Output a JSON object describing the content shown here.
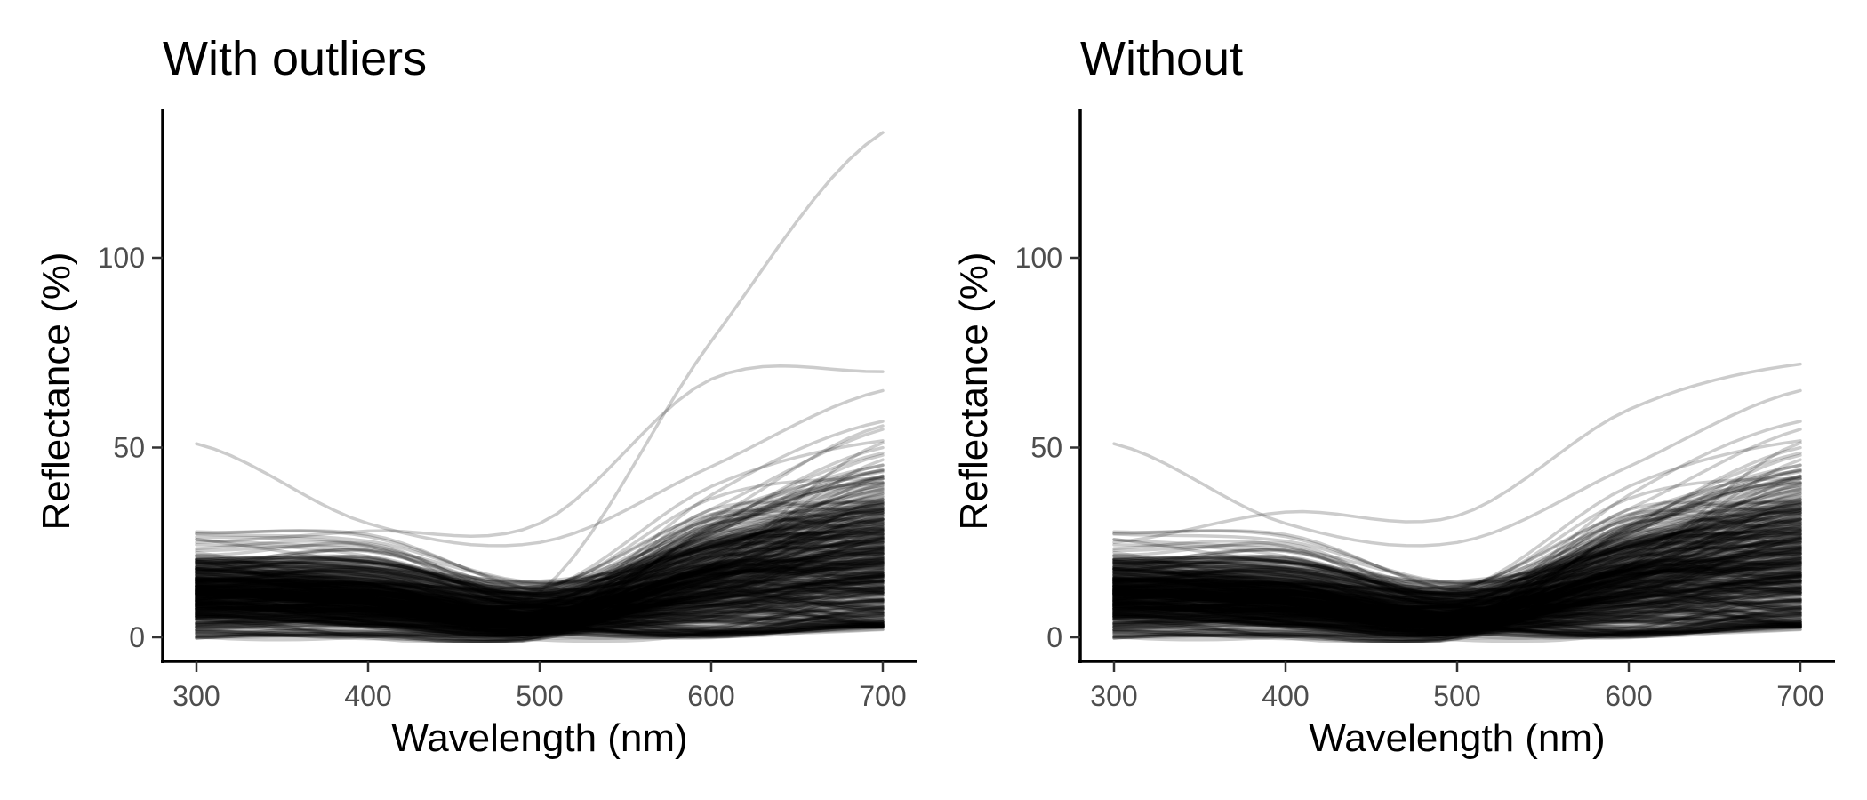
{
  "chart_data": [
    {
      "type": "line",
      "panel": "left",
      "title": "With outliers",
      "xlabel": "Wavelength (nm)",
      "ylabel": "Reflectance (%)",
      "xlim": [
        300,
        700
      ],
      "ylim": [
        0,
        133
      ],
      "xticks": [
        300,
        400,
        500,
        600,
        700
      ],
      "yticks": [
        0,
        50,
        100
      ],
      "grid": false,
      "legend": "none",
      "line_color": "#000000",
      "line_alpha": 0.2,
      "n_spectra": 400,
      "includes_outliers": true,
      "representative_series": [
        {
          "x": [
            300,
            400,
            500,
            600,
            700
          ],
          "y": [
            1,
            1,
            1,
            2,
            3
          ]
        },
        {
          "x": [
            300,
            400,
            500,
            600,
            700
          ],
          "y": [
            10,
            6,
            4,
            25,
            35
          ]
        },
        {
          "x": [
            300,
            400,
            500,
            600,
            700
          ],
          "y": [
            51,
            30,
            25,
            45,
            65
          ]
        },
        {
          "x": [
            300,
            400,
            500,
            600,
            700
          ],
          "y": [
            20,
            10,
            12,
            78,
            133
          ]
        },
        {
          "x": [
            300,
            400,
            500,
            600,
            700
          ],
          "y": [
            25,
            28,
            30,
            68,
            70
          ]
        }
      ]
    },
    {
      "type": "line",
      "panel": "right",
      "title": "Without",
      "xlabel": "Wavelength (nm)",
      "ylabel": "Reflectance (%)",
      "xlim": [
        300,
        700
      ],
      "ylim": [
        0,
        133
      ],
      "xticks": [
        300,
        400,
        500,
        600,
        700
      ],
      "yticks": [
        0,
        50,
        100
      ],
      "grid": false,
      "legend": "none",
      "line_color": "#000000",
      "line_alpha": 0.2,
      "n_spectra": 395,
      "includes_outliers": false,
      "representative_series": [
        {
          "x": [
            300,
            400,
            500,
            600,
            700
          ],
          "y": [
            2,
            2,
            2,
            4,
            6
          ]
        },
        {
          "x": [
            300,
            400,
            500,
            600,
            700
          ],
          "y": [
            10,
            6,
            4,
            25,
            35
          ]
        },
        {
          "x": [
            300,
            400,
            500,
            600,
            700
          ],
          "y": [
            51,
            30,
            25,
            45,
            65
          ]
        },
        {
          "x": [
            300,
            400,
            500,
            600,
            700
          ],
          "y": [
            25,
            33,
            32,
            60,
            72
          ]
        }
      ]
    }
  ]
}
